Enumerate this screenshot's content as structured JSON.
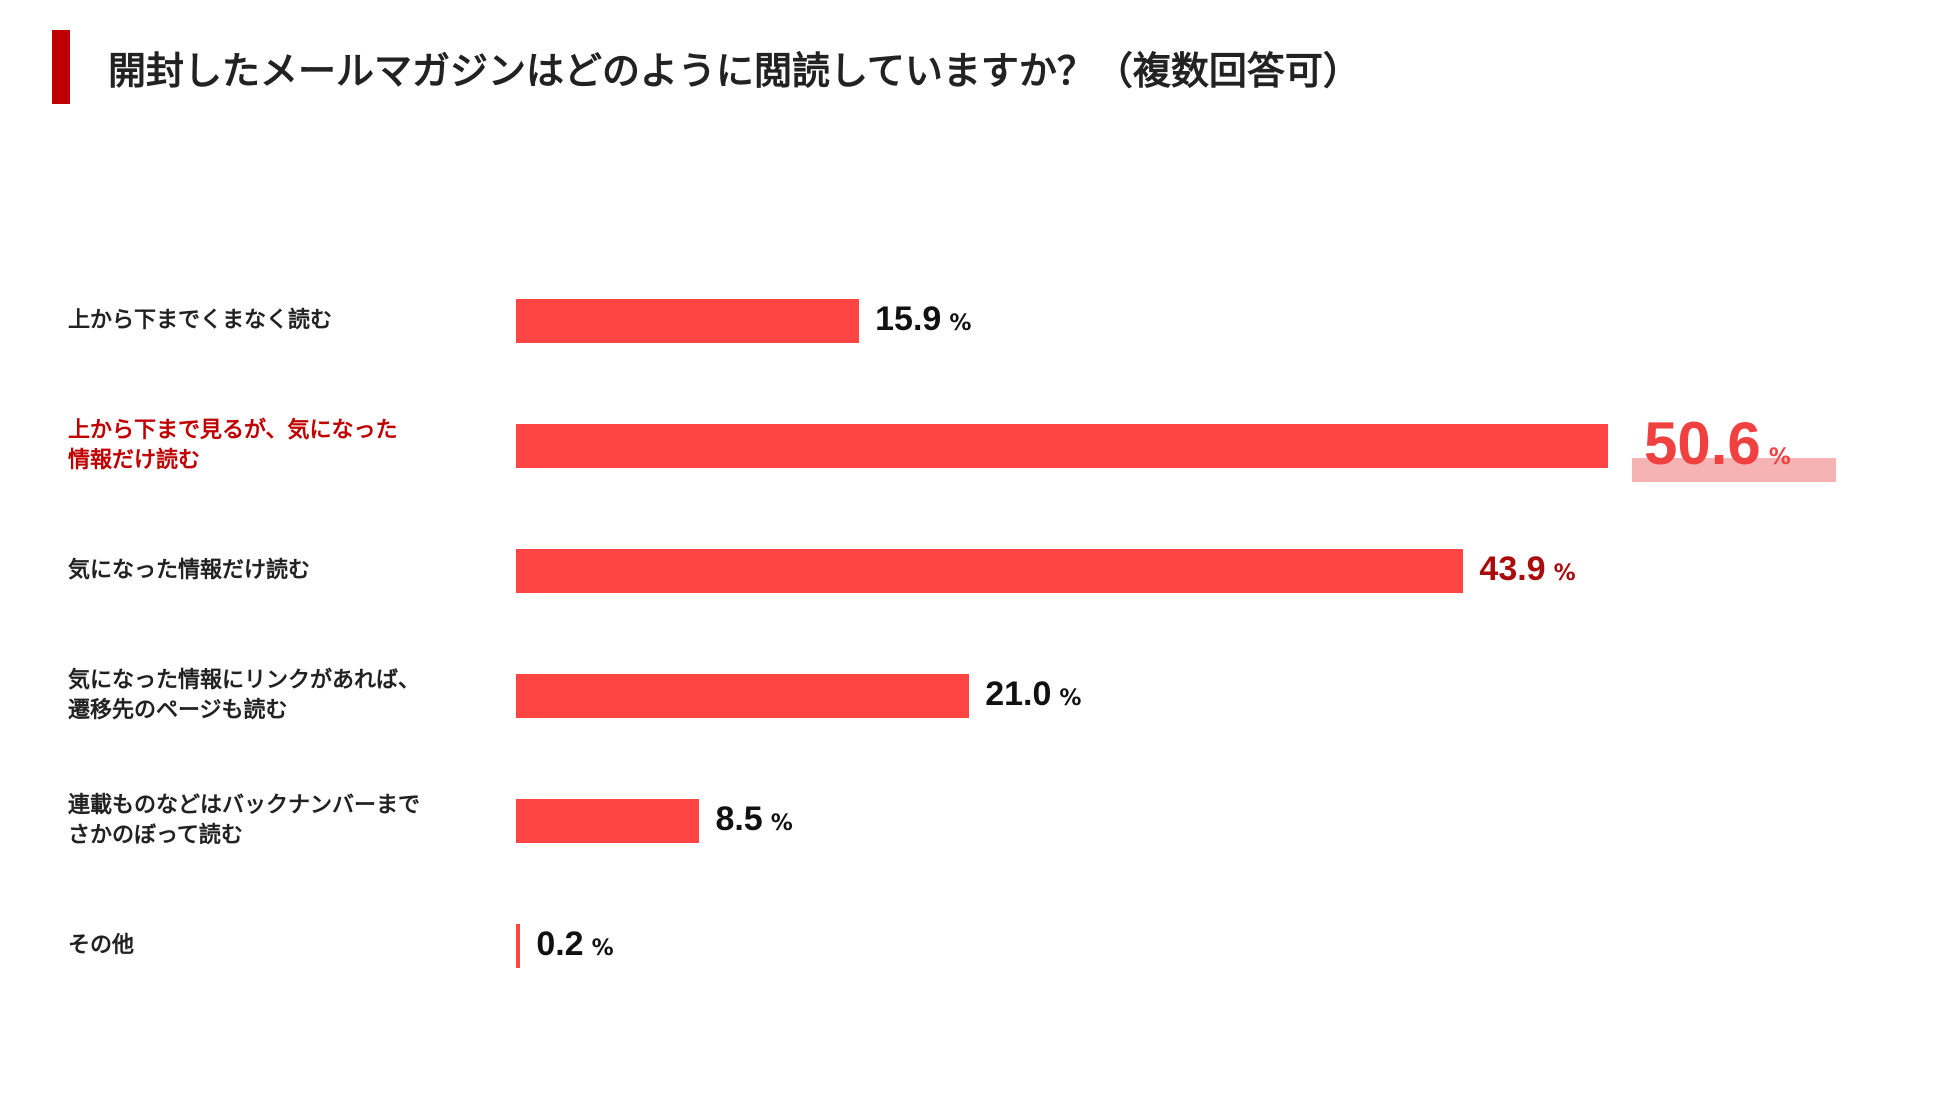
{
  "header": {
    "title": "開封したメールマガジンはどのように閲読していますか？（複数回答可）"
  },
  "colors": {
    "accent": "#c00000",
    "bar": "#ff4444",
    "highlight_text": "#f04040",
    "highlight_bg": "#f6b3b3",
    "second_text": "#a80c0c",
    "default_text": "#111111"
  },
  "chart_data": {
    "type": "bar",
    "orientation": "horizontal",
    "unit": "%",
    "xlim": [
      0,
      50.6
    ],
    "categories": [
      [
        "上から下までくまなく読む"
      ],
      [
        "上から下まで見るが、気になった",
        "情報だけ読む"
      ],
      [
        "気になった情報だけ読む"
      ],
      [
        "気になった情報にリンクがあれば、",
        "遷移先のページも読む"
      ],
      [
        "連載ものなどはバックナンバーまで",
        "さかのぼって読む"
      ],
      [
        "その他"
      ]
    ],
    "values": [
      15.9,
      50.6,
      43.9,
      21.0,
      8.5,
      0.2
    ],
    "value_labels": [
      "15.9",
      "50.6",
      "43.9",
      "21.0",
      "8.5",
      "0.2"
    ],
    "highlight_index": 1,
    "secondary_index": 2
  }
}
